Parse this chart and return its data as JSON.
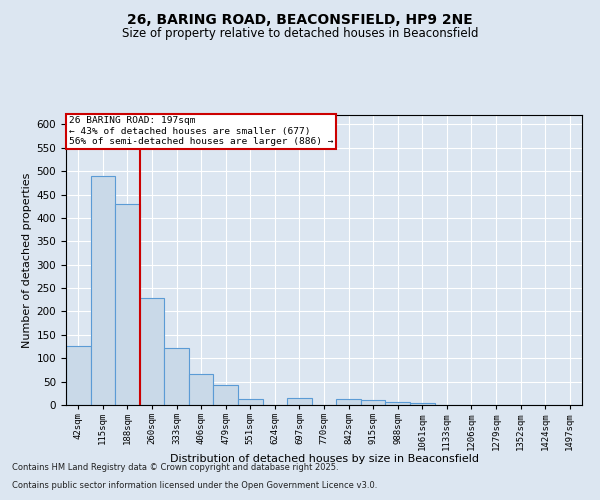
{
  "title_line1": "26, BARING ROAD, BEACONSFIELD, HP9 2NE",
  "title_line2": "Size of property relative to detached houses in Beaconsfield",
  "xlabel": "Distribution of detached houses by size in Beaconsfield",
  "ylabel": "Number of detached properties",
  "bar_color": "#c9d9e8",
  "bar_edge_color": "#5b9bd5",
  "background_color": "#dce6f1",
  "plot_bg_color": "#dce6f1",
  "categories": [
    "42sqm",
    "115sqm",
    "188sqm",
    "260sqm",
    "333sqm",
    "406sqm",
    "479sqm",
    "551sqm",
    "624sqm",
    "697sqm",
    "770sqm",
    "842sqm",
    "915sqm",
    "988sqm",
    "1061sqm",
    "1133sqm",
    "1206sqm",
    "1279sqm",
    "1352sqm",
    "1424sqm",
    "1497sqm"
  ],
  "values": [
    127,
    490,
    430,
    228,
    122,
    67,
    42,
    13,
    0,
    14,
    0,
    13,
    10,
    7,
    5,
    0,
    0,
    0,
    0,
    0,
    0
  ],
  "red_line_x": 2.5,
  "annotation_title": "26 BARING ROAD: 197sqm",
  "annotation_line1": "← 43% of detached houses are smaller (677)",
  "annotation_line2": "56% of semi-detached houses are larger (886) →",
  "annotation_box_color": "#ffffff",
  "annotation_box_edge": "#cc0000",
  "red_line_color": "#cc0000",
  "ylim": [
    0,
    620
  ],
  "yticks": [
    0,
    50,
    100,
    150,
    200,
    250,
    300,
    350,
    400,
    450,
    500,
    550,
    600
  ],
  "footnote1": "Contains HM Land Registry data © Crown copyright and database right 2025.",
  "footnote2": "Contains public sector information licensed under the Open Government Licence v3.0."
}
